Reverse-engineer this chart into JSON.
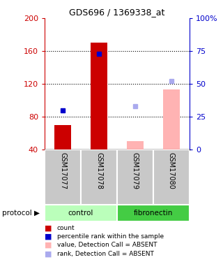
{
  "title": "GDS696 / 1369338_at",
  "samples": [
    "GSM17077",
    "GSM17078",
    "GSM17079",
    "GSM17080"
  ],
  "bar_values": [
    70,
    170,
    null,
    113
  ],
  "bar_colors": [
    "#cc0000",
    "#cc0000",
    null,
    null
  ],
  "absent_bar_values": [
    null,
    null,
    50,
    113
  ],
  "absent_bar_colors": [
    null,
    null,
    "#ffb3b3",
    "#ffb3b3"
  ],
  "dot_values_pct": [
    30,
    73,
    null,
    null
  ],
  "dot_colors": [
    "#0000cc",
    "#0000cc",
    null,
    null
  ],
  "absent_dot_values_pct": [
    null,
    null,
    33,
    52
  ],
  "absent_dot_colors": [
    null,
    null,
    "#aaaaee",
    "#aaaaee"
  ],
  "ylim_left": [
    40,
    200
  ],
  "ylim_right": [
    0,
    100
  ],
  "left_ticks": [
    40,
    80,
    120,
    160,
    200
  ],
  "right_ticks": [
    0,
    25,
    50,
    75,
    100
  ],
  "right_tick_labels": [
    "0",
    "25",
    "50",
    "75",
    "100%"
  ],
  "left_axis_color": "#cc0000",
  "right_axis_color": "#0000cc",
  "bar_width": 0.45,
  "tick_area_color": "#c8c8c8",
  "protocol_area_color_control": "#bbffbb",
  "protocol_area_color_fibronectin": "#44cc44"
}
